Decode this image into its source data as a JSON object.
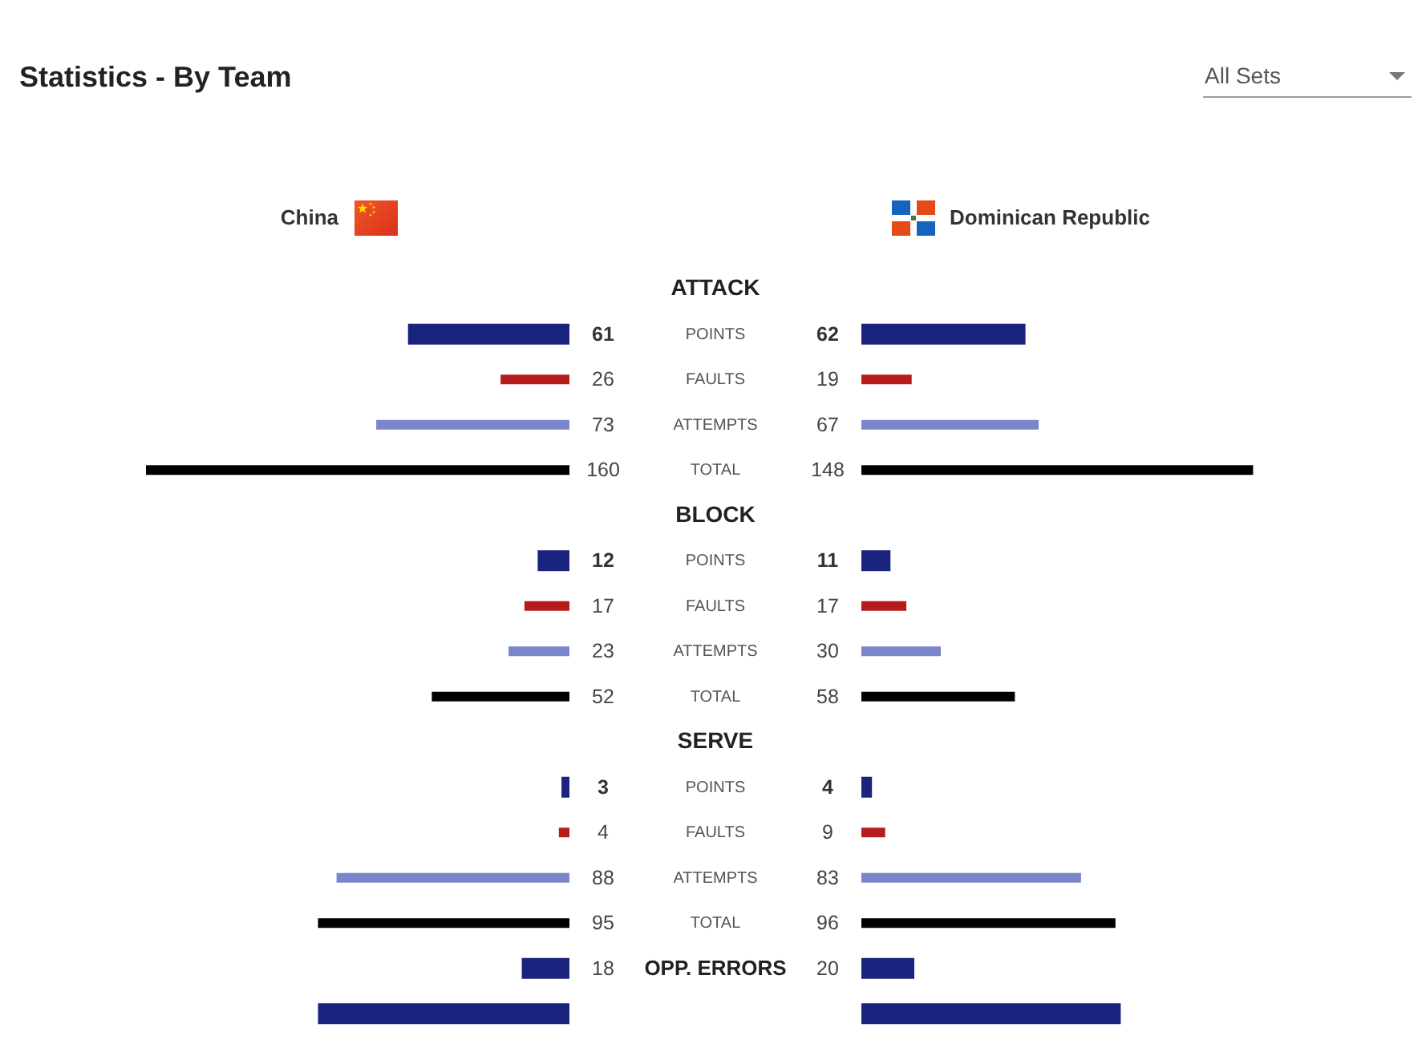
{
  "chart_data": [
    {
      "type": "bar",
      "orientation": "horizontal",
      "title": "Statistics - By Team",
      "annotations": [
        "All Sets"
      ],
      "categories": [
        "ATTACK",
        "POINTS",
        "FAULTS",
        "ATTEMPTS",
        "TOTAL",
        "BLOCK",
        "POINTS",
        "FAULTS",
        "ATTEMPTS",
        "TOTAL",
        "SERVE",
        "POINTS",
        "FAULTS",
        "ATTEMPTS",
        "TOTAL",
        "OPP. ERRORS",
        null
      ],
      "series": [
        {
          "name": "China",
          "colors": [
            null,
            "#1a237e",
            "#b71c1c",
            "#7986cb",
            "#000000",
            null,
            "#1a237e",
            "#b71c1c",
            "#7986cb",
            "#000000",
            null,
            "#1a237e",
            "#b71c1c",
            "#7986cb",
            "#000000",
            "#1a237e",
            "#1a237e"
          ],
          "values": [
            null,
            61,
            26,
            73,
            160,
            null,
            12,
            17,
            23,
            52,
            null,
            3,
            4,
            88,
            95,
            18,
            95
          ],
          "value_labels": [
            null,
            "61",
            "26",
            "73",
            "160",
            null,
            "12",
            "17",
            "23",
            "52",
            null,
            "3",
            "4",
            "88",
            "95",
            "18",
            null
          ]
        }
      ]
    },
    {
      "type": "bar",
      "orientation": "horizontal",
      "categories": [
        null,
        null,
        null,
        null,
        null,
        null,
        null,
        null,
        null,
        null,
        null,
        null,
        null,
        null,
        null,
        null,
        null
      ],
      "series": [
        {
          "name": "Dominican Republic",
          "colors": [
            null,
            "#1a237e",
            "#b71c1c",
            "#7986cb",
            "#000000",
            null,
            "#1a237e",
            "#b71c1c",
            "#7986cb",
            "#000000",
            null,
            "#1a237e",
            "#b71c1c",
            "#7986cb",
            "#000000",
            "#1a237e",
            "#1a237e"
          ],
          "values": [
            null,
            62,
            19,
            67,
            148,
            null,
            11,
            17,
            30,
            58,
            null,
            4,
            9,
            83,
            96,
            20,
            98
          ],
          "value_labels": [
            null,
            "62",
            "19",
            "67",
            "148",
            null,
            "11",
            "17",
            "30",
            "58",
            null,
            "4",
            "9",
            "83",
            "96",
            "20",
            null
          ]
        }
      ]
    }
  ]
}
